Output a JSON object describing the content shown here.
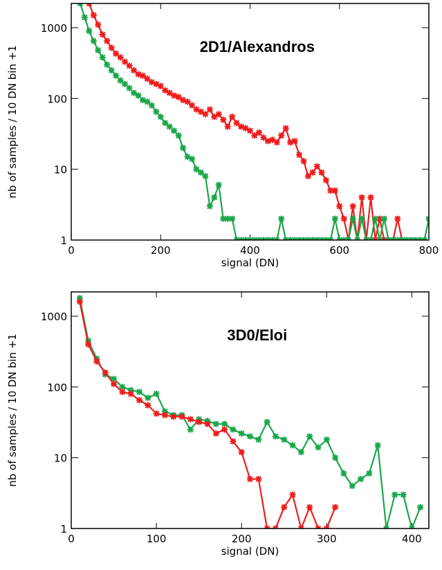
{
  "chart_data": [
    {
      "type": "line",
      "title": "2D1/Alexandros",
      "xlabel": "signal (DN)",
      "ylabel": "nb of samples / 10 DN bin +1",
      "log_y": true,
      "xlim": [
        0,
        800
      ],
      "ylim": [
        1,
        2200
      ],
      "xticks": [
        0,
        200,
        400,
        600,
        800
      ],
      "yticks": [
        1,
        10,
        100,
        1000
      ],
      "series": [
        {
          "name": "red",
          "color": "#ee1c1c",
          "x": [
            30,
            40,
            50,
            60,
            70,
            80,
            90,
            100,
            110,
            120,
            130,
            140,
            150,
            160,
            170,
            180,
            190,
            200,
            210,
            220,
            230,
            240,
            250,
            260,
            270,
            280,
            290,
            300,
            310,
            320,
            330,
            340,
            350,
            360,
            370,
            380,
            390,
            400,
            410,
            420,
            430,
            440,
            450,
            460,
            470,
            480,
            490,
            500,
            510,
            520,
            530,
            540,
            550,
            560,
            570,
            580,
            590,
            600,
            610,
            620,
            630,
            640,
            650,
            660,
            670,
            680,
            690,
            700,
            710,
            720,
            730,
            740
          ],
          "values": [
            3000,
            2200,
            1500,
            1100,
            800,
            650,
            520,
            430,
            380,
            330,
            290,
            250,
            220,
            210,
            190,
            170,
            160,
            150,
            130,
            120,
            110,
            105,
            95,
            90,
            80,
            70,
            65,
            60,
            70,
            55,
            60,
            50,
            40,
            55,
            45,
            40,
            38,
            35,
            30,
            33,
            28,
            25,
            26,
            24,
            30,
            38,
            24,
            25,
            16,
            13,
            8,
            9,
            11,
            9,
            7,
            5,
            5,
            3,
            2,
            1,
            3,
            1,
            4,
            1,
            4,
            1,
            2,
            1,
            1,
            1,
            2,
            1
          ]
        },
        {
          "name": "green",
          "color": "#1aa64a",
          "x": [
            20,
            30,
            40,
            50,
            60,
            70,
            80,
            90,
            100,
            110,
            120,
            130,
            140,
            150,
            160,
            170,
            180,
            190,
            200,
            210,
            220,
            230,
            240,
            250,
            260,
            270,
            280,
            290,
            300,
            310,
            320,
            330,
            340,
            350,
            360,
            370,
            380,
            390,
            400,
            410,
            420,
            430,
            440,
            450,
            460,
            470,
            480,
            490,
            500,
            510,
            520,
            530,
            540,
            550,
            560,
            570,
            580,
            590,
            600,
            610,
            620,
            630,
            640,
            650,
            660,
            670,
            680,
            690,
            700,
            710,
            720,
            730,
            740,
            750,
            760,
            770,
            780,
            790,
            800
          ],
          "values": [
            2200,
            1400,
            900,
            650,
            480,
            380,
            300,
            250,
            210,
            180,
            160,
            140,
            120,
            110,
            95,
            90,
            80,
            65,
            55,
            45,
            40,
            35,
            30,
            20,
            15,
            14,
            10,
            9,
            8,
            3,
            4,
            6,
            2,
            2,
            2,
            1,
            1,
            1,
            1,
            1,
            1,
            1,
            1,
            1,
            1,
            2,
            1,
            1,
            1,
            1,
            1,
            1,
            1,
            1,
            1,
            1,
            1,
            2,
            1,
            1,
            1,
            2,
            1,
            2,
            1,
            1,
            2,
            1,
            2,
            1,
            1,
            1,
            1,
            1,
            1,
            1,
            1,
            1,
            2
          ]
        }
      ]
    },
    {
      "type": "line",
      "title": "3D0/Eloi",
      "xlabel": "signal (DN)",
      "ylabel": "nb of samples / 10 DN bin +1",
      "log_y": true,
      "xlim": [
        0,
        420
      ],
      "ylim": [
        1,
        2200
      ],
      "xticks": [
        0,
        100,
        200,
        300,
        400
      ],
      "yticks": [
        1,
        10,
        100,
        1000
      ],
      "series": [
        {
          "name": "green",
          "color": "#1aa64a",
          "x": [
            10,
            20,
            30,
            40,
            50,
            60,
            70,
            80,
            90,
            100,
            110,
            120,
            130,
            140,
            150,
            160,
            170,
            180,
            190,
            200,
            210,
            220,
            230,
            240,
            250,
            260,
            270,
            280,
            290,
            300,
            310,
            320,
            330,
            340,
            350,
            360,
            370,
            380,
            390,
            400,
            410
          ],
          "values": [
            1800,
            450,
            250,
            150,
            130,
            100,
            90,
            85,
            70,
            80,
            45,
            40,
            40,
            25,
            35,
            33,
            30,
            30,
            25,
            22,
            20,
            18,
            32,
            20,
            18,
            15,
            12,
            20,
            14,
            18,
            10,
            6,
            4,
            5,
            6,
            15,
            1,
            3,
            3,
            1,
            2
          ]
        },
        {
          "name": "red",
          "color": "#ee1c1c",
          "x": [
            10,
            20,
            30,
            40,
            50,
            60,
            70,
            80,
            90,
            100,
            110,
            120,
            130,
            140,
            150,
            160,
            170,
            180,
            190,
            200,
            210,
            220,
            230,
            240,
            250,
            260,
            270,
            280,
            290,
            300,
            310
          ],
          "values": [
            1600,
            400,
            230,
            160,
            110,
            85,
            80,
            65,
            55,
            42,
            40,
            38,
            38,
            35,
            32,
            30,
            22,
            25,
            17,
            12,
            5,
            5,
            1,
            1,
            2,
            3,
            1,
            2,
            1,
            1,
            2
          ]
        }
      ]
    }
  ]
}
